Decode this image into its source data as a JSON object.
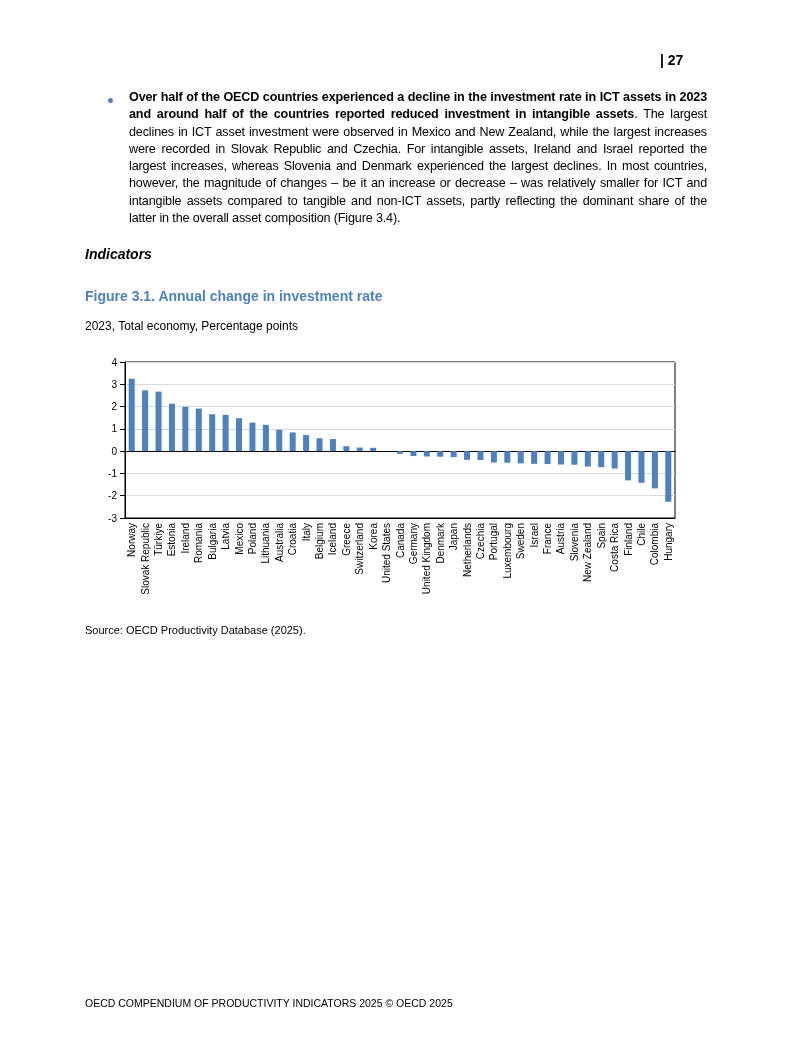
{
  "chart_data": {
    "type": "bar",
    "title": "Figure 3.1. Annual change in investment rate",
    "subtitle": "2023, Total economy, Percentage points",
    "categories": [
      "Norway",
      "Slovak Republic",
      "Türkiye",
      "Estonia",
      "Ireland",
      "Romania",
      "Bulgaria",
      "Latvia",
      "Mexico",
      "Poland",
      "Lithuania",
      "Australia",
      "Croatia",
      "Italy",
      "Belgium",
      "Iceland",
      "Greece",
      "Switzerland",
      "Korea",
      "United States",
      "Canada",
      "Germany",
      "United Kingdom",
      "Denmark",
      "Japan",
      "Netherlands",
      "Czechia",
      "Portugal",
      "Luxembourg",
      "Sweden",
      "Israel",
      "France",
      "Austria",
      "Slovenia",
      "New Zealand",
      "Spain",
      "Costa Rica",
      "Finland",
      "Chile",
      "Colombia",
      "Hungary"
    ],
    "values": [
      3.25,
      2.73,
      2.67,
      2.13,
      1.99,
      1.91,
      1.66,
      1.63,
      1.48,
      1.28,
      1.18,
      0.96,
      0.84,
      0.72,
      0.58,
      0.54,
      0.22,
      0.16,
      0.15,
      null,
      -0.12,
      -0.22,
      -0.24,
      -0.25,
      -0.27,
      -0.39,
      -0.4,
      -0.51,
      -0.52,
      -0.55,
      -0.57,
      -0.58,
      -0.6,
      -0.61,
      -0.69,
      -0.72,
      -0.78,
      -1.31,
      -1.42,
      -1.67,
      -2.27
    ],
    "color": "#4f81bd",
    "ylim": [
      -3,
      4
    ],
    "yticks": [
      -3,
      -2,
      -1,
      0,
      1,
      2,
      3,
      4
    ],
    "grid": "y",
    "annotations": [
      "| 27",
      "Over half of the OECD countries experienced a decline in the investment rate in ICT assets in 2023 and around half of the countries reported reduced investment in intangible assets",
      ". The largest declines in ICT asset investment were observed in Mexico and New Zealand, while the largest increases were recorded in Slovak Republic and Czechia. For intangible assets, Ireland and Israel reported the largest increases, whereas Slovenia and Denmark experienced the largest declines. In most countries, however, the magnitude of changes – be it an increase or decrease – was relatively smaller for ICT and intangible assets compared to tangible and non-ICT assets, partly reflecting the dominant share of the latter in the overall asset composition (Figure 3.4).",
      "Indicators",
      "Source: OECD Productivity Database (2025).",
      "OECD COMPENDIUM OF PRODUCTIVITY INDICATORS 2025 © OECD 2025"
    ]
  }
}
